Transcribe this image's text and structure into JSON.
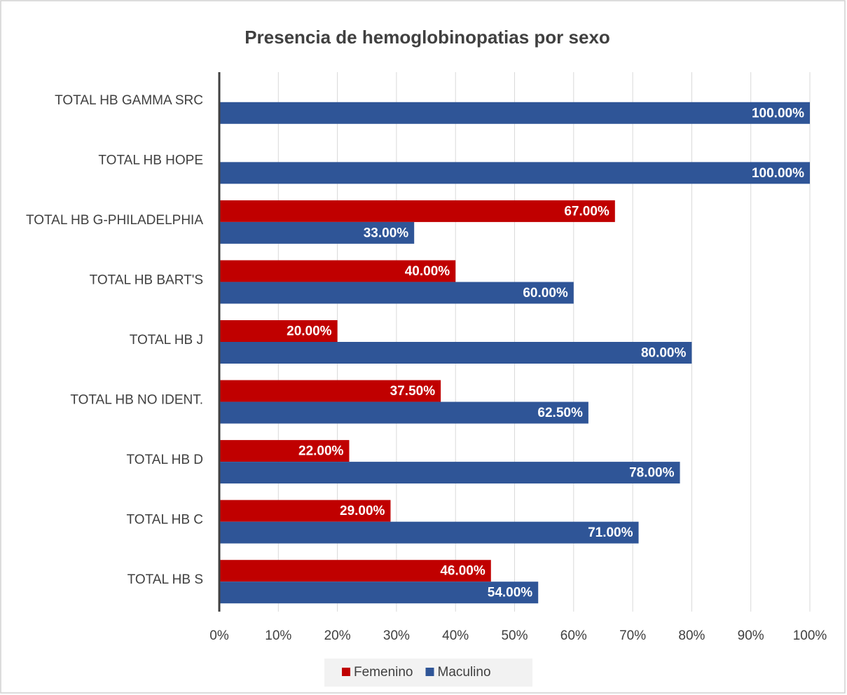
{
  "chart_data": {
    "type": "bar",
    "orientation": "horizontal",
    "title": "Presencia de hemoglobinopatias por sexo",
    "categories": [
      "TOTAL HB GAMMA SRC",
      "TOTAL HB HOPE",
      "TOTAL HB G-PHILADELPHIA",
      "TOTAL HB BART'S",
      "TOTAL HB J",
      "TOTAL HB NO IDENT.",
      "TOTAL HB D",
      "TOTAL HB C",
      "TOTAL HB S"
    ],
    "series": [
      {
        "name": "Femenino",
        "color": "#c00000",
        "values": [
          null,
          null,
          67,
          40,
          20,
          37.5,
          22,
          29,
          46
        ],
        "value_labels": [
          null,
          null,
          "67.00%",
          "40.00%",
          "20.00%",
          "37.50%",
          "22.00%",
          "29.00%",
          "46.00%"
        ]
      },
      {
        "name": "Maculino",
        "color": "#2f5597",
        "values": [
          100,
          100,
          33,
          60,
          80,
          62.5,
          78,
          71,
          54
        ],
        "value_labels": [
          "100.00%",
          "100.00%",
          "33.00%",
          "60.00%",
          "80.00%",
          "62.50%",
          "78.00%",
          "71.00%",
          "54.00%"
        ]
      }
    ],
    "xlim": [
      0,
      100
    ],
    "xticks": [
      {
        "value": 0,
        "label": "0%"
      },
      {
        "value": 10,
        "label": "10%"
      },
      {
        "value": 20,
        "label": "20%"
      },
      {
        "value": 30,
        "label": "30%"
      },
      {
        "value": 40,
        "label": "40%"
      },
      {
        "value": 50,
        "label": "50%"
      },
      {
        "value": 60,
        "label": "60%"
      },
      {
        "value": 70,
        "label": "70%"
      },
      {
        "value": 80,
        "label": "80%"
      },
      {
        "value": 90,
        "label": "90%"
      },
      {
        "value": 100,
        "label": "100%"
      }
    ],
    "grid": true,
    "legend": "bottom"
  }
}
